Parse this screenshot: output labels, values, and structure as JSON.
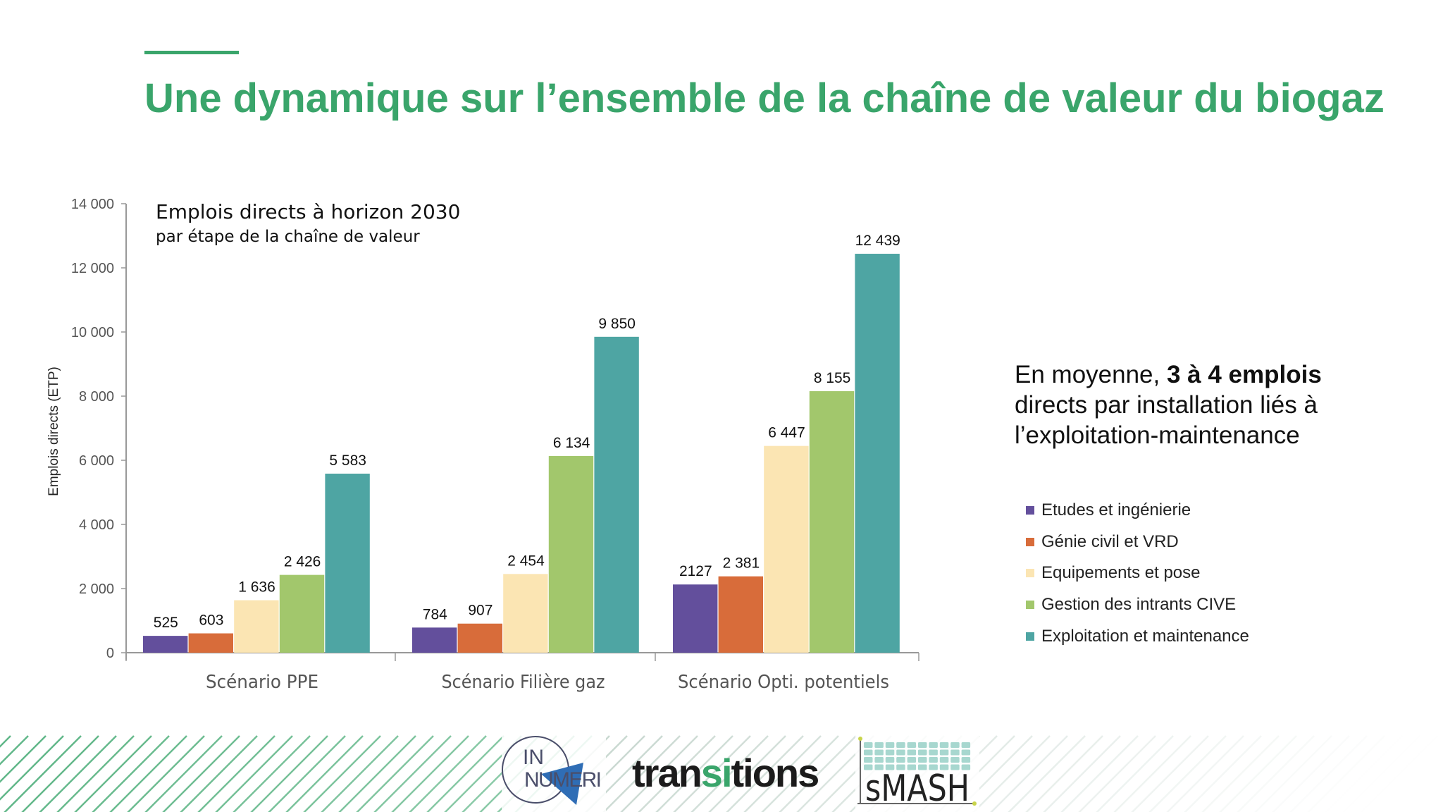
{
  "slide": {
    "title": "Une dynamique sur l’ensemble de la chaîne de valeur du biogaz",
    "accent_color": "#3aa56b"
  },
  "note": {
    "prefix": "En moyenne, ",
    "bold": "3 à 4 emplois",
    "suffix": " directs par installation liés à l’exploitation-maintenance"
  },
  "logos": {
    "innumeri_line1": "IN",
    "innumeri_line2": "NUMERI",
    "transitions_a": "tran",
    "transitions_b": "si",
    "transitions_c": "tions",
    "smash": "sMASH"
  },
  "chart_data": {
    "type": "bar",
    "title": "Emplois directs à horizon 2030",
    "subtitle": "par étape de la chaîne de valeur",
    "xlabel": "",
    "ylabel": "Emplois directs (ETP)",
    "ylim": [
      0,
      14000
    ],
    "yticks": [
      0,
      2000,
      4000,
      6000,
      8000,
      10000,
      12000,
      14000
    ],
    "ytick_labels": [
      "0",
      "2 000",
      "4 000",
      "6 000",
      "8 000",
      "10 000",
      "12 000",
      "14 000"
    ],
    "grid": false,
    "legend_position": "right",
    "categories": [
      "Scénario PPE",
      "Scénario Filière gaz",
      "Scénario Opti. potentiels"
    ],
    "series": [
      {
        "name": "Etudes et ingénierie",
        "color": "#634f9c",
        "values": [
          525,
          784,
          2127
        ],
        "labels": [
          "525",
          "784",
          "2127"
        ]
      },
      {
        "name": "Génie civil et VRD",
        "color": "#d86c3a",
        "values": [
          603,
          907,
          2381
        ],
        "labels": [
          "603",
          "907",
          "2 381"
        ]
      },
      {
        "name": "Equipements et pose",
        "color": "#fbe5b3",
        "values": [
          1636,
          2454,
          6447
        ],
        "labels": [
          "1 636",
          "2 454",
          "6 447"
        ]
      },
      {
        "name": "Gestion des intrants CIVE",
        "color": "#a2c76c",
        "values": [
          2426,
          6134,
          8155
        ],
        "labels": [
          "2 426",
          "6 134",
          "8 155"
        ]
      },
      {
        "name": "Exploitation et maintenance",
        "color": "#4ea5a3",
        "values": [
          5583,
          9850,
          12439
        ],
        "labels": [
          "5 583",
          "9 850",
          "12 439"
        ]
      }
    ]
  }
}
